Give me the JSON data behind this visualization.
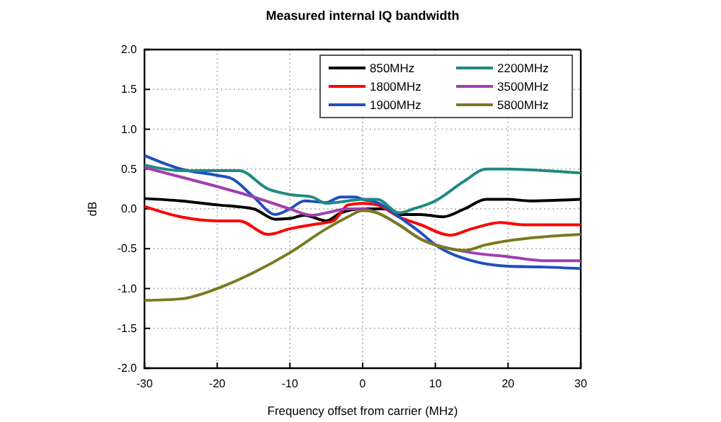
{
  "chart_data": {
    "type": "line",
    "title": "Measured internal IQ bandwidth",
    "xlabel": "Frequency offset from carrier (MHz)",
    "ylabel": "dB",
    "xlim": [
      -30,
      30
    ],
    "xticks": [
      -30,
      -20,
      -10,
      0,
      10,
      20,
      30
    ],
    "ylim": [
      -2,
      2
    ],
    "yticks": [
      {
        "value": -2,
        "label": "-2.0"
      },
      {
        "value": -1.5,
        "label": "-1.5"
      },
      {
        "value": -1,
        "label": "-1.0"
      },
      {
        "value": -0.5,
        "label": "-0.5"
      },
      {
        "value": 0,
        "label": "0.0"
      },
      {
        "value": 0.5,
        "label": "0.5"
      },
      {
        "value": 1,
        "label": "1.0"
      },
      {
        "value": 1.5,
        "label": "1.5"
      },
      {
        "value": 2,
        "label": "2.0"
      }
    ],
    "grid": true,
    "legend": "top right",
    "marker": "none",
    "line_style": "solid",
    "series": [
      {
        "name": "850MHz",
        "color": "#000000",
        "x": [
          -30,
          -25,
          -20,
          -15,
          -12,
          -10,
          -8,
          -5,
          -3,
          0,
          3,
          5,
          8,
          11,
          14,
          17,
          20,
          23,
          30
        ],
        "values": [
          0.13,
          0.1,
          0.05,
          0.0,
          -0.13,
          -0.12,
          -0.08,
          -0.15,
          -0.05,
          0.0,
          0.0,
          -0.07,
          -0.07,
          -0.1,
          0.0,
          0.12,
          0.12,
          0.1,
          0.12
        ]
      },
      {
        "name": "1800MHz",
        "color": "#ff0000",
        "x": [
          -30,
          -25,
          -20,
          -17,
          -13,
          -10,
          -7,
          -4,
          -2,
          0,
          2,
          5,
          8,
          12,
          15,
          19,
          22,
          30
        ],
        "values": [
          0.03,
          -0.1,
          -0.15,
          -0.15,
          -0.32,
          -0.25,
          -0.2,
          -0.15,
          0.05,
          0.07,
          0.05,
          -0.1,
          -0.2,
          -0.33,
          -0.25,
          -0.17,
          -0.2,
          -0.2
        ]
      },
      {
        "name": "1900MHz",
        "color": "#1f4fbf",
        "x": [
          -30,
          -25,
          -20,
          -18,
          -15,
          -12,
          -10,
          -8,
          -5,
          -3,
          -1,
          0,
          2,
          5,
          8,
          10,
          15,
          20,
          25,
          30
        ],
        "values": [
          0.67,
          0.5,
          0.42,
          0.38,
          0.15,
          -0.07,
          0.0,
          0.1,
          0.08,
          0.15,
          0.15,
          0.12,
          0.08,
          -0.1,
          -0.3,
          -0.45,
          -0.65,
          -0.72,
          -0.73,
          -0.75
        ]
      },
      {
        "name": "2200MHz",
        "color": "#1f8a80",
        "x": [
          -30,
          -25,
          -20,
          -17,
          -13,
          -10,
          -7,
          -5,
          -2,
          0,
          2,
          5,
          7,
          10,
          14,
          17,
          20,
          25,
          30
        ],
        "values": [
          0.55,
          0.48,
          0.48,
          0.48,
          0.25,
          0.18,
          0.15,
          0.07,
          0.1,
          0.12,
          0.12,
          -0.05,
          0.0,
          0.1,
          0.35,
          0.5,
          0.5,
          0.48,
          0.45
        ]
      },
      {
        "name": "3500MHz",
        "color": "#a040b0",
        "x": [
          -30,
          -25,
          -20,
          -15,
          -10,
          -7,
          -5,
          -2,
          0,
          2,
          5,
          8,
          10,
          15,
          20,
          25,
          30
        ],
        "values": [
          0.52,
          0.4,
          0.28,
          0.15,
          0.0,
          -0.08,
          -0.05,
          0.0,
          0.0,
          -0.05,
          -0.2,
          -0.38,
          -0.45,
          -0.55,
          -0.6,
          -0.65,
          -0.65
        ]
      },
      {
        "name": "5800MHz",
        "color": "#7a7a20",
        "x": [
          -30,
          -25,
          -20,
          -15,
          -10,
          -5,
          -2,
          0,
          2,
          5,
          8,
          12,
          14,
          17,
          20,
          25,
          30
        ],
        "values": [
          -1.15,
          -1.13,
          -1.0,
          -0.8,
          -0.55,
          -0.25,
          -0.1,
          -0.02,
          -0.05,
          -0.2,
          -0.38,
          -0.5,
          -0.52,
          -0.45,
          -0.4,
          -0.35,
          -0.32
        ]
      }
    ]
  }
}
